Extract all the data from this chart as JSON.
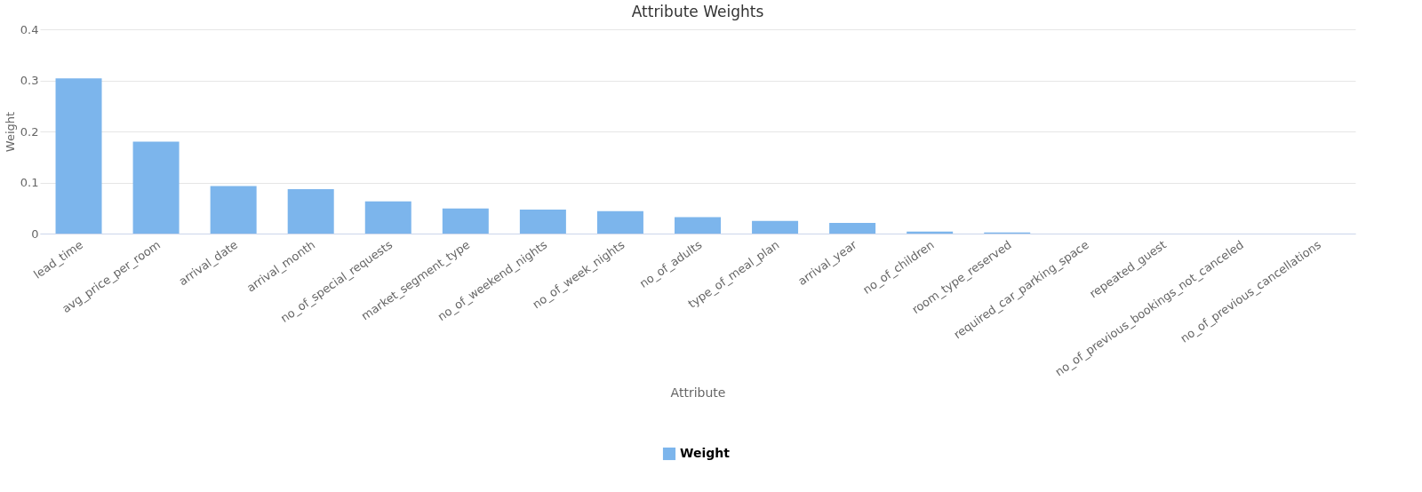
{
  "chart_data": {
    "type": "bar",
    "title": "Attribute Weights",
    "xlabel": "Attribute",
    "ylabel": "Weight",
    "categories": [
      "lead_time",
      "avg_price_per_room",
      "arrival_date",
      "arrival_month",
      "no_of_special_requests",
      "market_segment_type",
      "no_of_weekend_nights",
      "no_of_week_nights",
      "no_of_adults",
      "type_of_meal_plan",
      "arrival_year",
      "no_of_children",
      "room_type_reserved",
      "required_car_parking_space",
      "repeated_guest",
      "no_of_previous_bookings_not_canceled",
      "no_of_previous_cancellations"
    ],
    "series": [
      {
        "name": "Weight",
        "color": "#7cb5ec",
        "values": [
          0.304,
          0.18,
          0.093,
          0.087,
          0.063,
          0.049,
          0.047,
          0.044,
          0.032,
          0.025,
          0.021,
          0.004,
          0.002,
          0,
          0,
          0,
          0
        ]
      }
    ],
    "ylim": [
      0,
      0.4
    ],
    "yticks": [
      0,
      0.1,
      0.2,
      0.3,
      0.4
    ],
    "grid": "y",
    "legend": "bottom"
  }
}
